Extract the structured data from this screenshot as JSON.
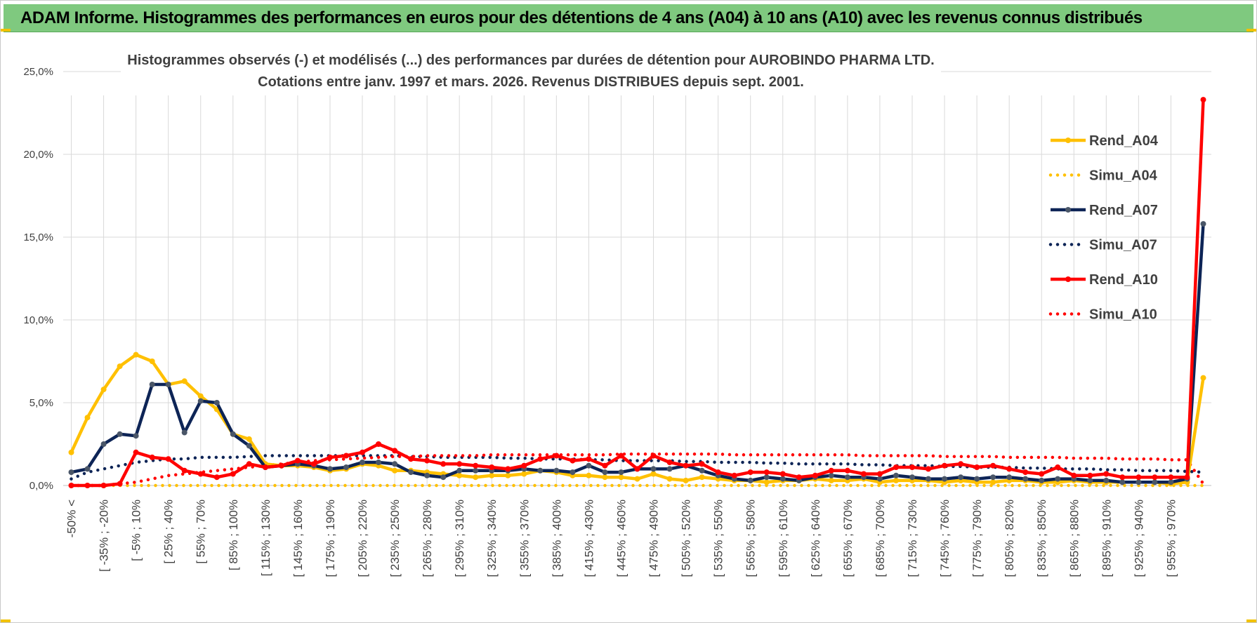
{
  "banner": {
    "title": "ADAM Informe. Histogrammes des performances en euros pour des détentions de 4 ans (A04) à 10 ans (A10) avec les revenus connus distribués"
  },
  "colors": {
    "banner": "#7fc97f",
    "corner": "#f2c200",
    "grid": "#d9d9d9",
    "A04": "#ffc000",
    "A07": "#0d2456",
    "A10": "#ff0000"
  },
  "chart_data": {
    "type": "line",
    "title": "Histogrammes observés (-) et modélisés (...) des performances par durées de détention pour AUROBINDO PHARMA LTD.",
    "subtitle": "Cotations entre janv. 1997 et mars. 2026. Revenus DISTRIBUES depuis sept. 2001.",
    "xlabel": "",
    "ylabel": "",
    "ylim": [
      0,
      25
    ],
    "yticks": [
      "0,0%",
      "5,0%",
      "10,0%",
      "15,0%",
      "20,0%",
      "25,0%"
    ],
    "grid": true,
    "legend_position": "right",
    "xtick_labels": [
      "-50% <",
      "[ -35% ; -20%",
      "[ -5% ; 10%",
      "[ 25% ; 40%",
      "[ 55% ; 70%",
      "[ 85% ; 100%",
      "[ 115% ; 130%",
      "[ 145% ; 160%",
      "[ 175% ; 190%",
      "[ 205% ; 220%",
      "[ 235% ; 250%",
      "[ 265% ; 280%",
      "[ 295% ; 310%",
      "[ 325% ; 340%",
      "[ 355% ; 370%",
      "[ 385% ; 400%",
      "[ 415% ; 430%",
      "[ 445% ; 460%",
      "[ 475% ; 490%",
      "[ 505% ; 520%",
      "[ 535% ; 550%",
      "[ 565% ; 580%",
      "[ 595% ; 610%",
      "[ 625% ; 640%",
      "[ 655% ; 670%",
      "[ 685% ; 700%",
      "[ 715% ; 730%",
      "[ 745% ; 760%",
      "[ 775% ; 790%",
      "[ 805% ; 820%",
      "[ 835% ; 850%",
      "[ 865% ; 880%",
      "[ 895% ; 910%",
      "[ 925% ; 940%",
      "[ 955% ; 970%"
    ],
    "series": [
      {
        "name": "Rend_A04",
        "style": "solid",
        "color": "#ffc000",
        "values": [
          2.0,
          4.1,
          5.8,
          7.2,
          7.9,
          7.5,
          6.1,
          6.3,
          5.4,
          4.6,
          3.1,
          2.8,
          1.3,
          1.2,
          1.2,
          1.1,
          0.9,
          1.0,
          1.3,
          1.2,
          0.9,
          0.9,
          0.8,
          0.7,
          0.6,
          0.5,
          0.6,
          0.6,
          0.7,
          0.9,
          0.8,
          0.6,
          0.6,
          0.5,
          0.5,
          0.4,
          0.7,
          0.4,
          0.3,
          0.5,
          0.4,
          0.3,
          0.3,
          0.2,
          0.3,
          0.3,
          0.4,
          0.3,
          0.3,
          0.4,
          0.2,
          0.3,
          0.3,
          0.3,
          0.2,
          0.3,
          0.2,
          0.2,
          0.3,
          0.3,
          0.2,
          0.2,
          0.3,
          0.2,
          0.2,
          0.2,
          0.2,
          0.2,
          0.1,
          0.2,
          6.5
        ]
      },
      {
        "name": "Simu_A04",
        "style": "dotted",
        "color": "#ffc000",
        "values": [
          0,
          0,
          0,
          0,
          0,
          0,
          0,
          0,
          0,
          0,
          0,
          0,
          0,
          0,
          0,
          0,
          0,
          0,
          0,
          0,
          0,
          0,
          0,
          0,
          0,
          0,
          0,
          0,
          0,
          0,
          0,
          0,
          0,
          0,
          0,
          0,
          0,
          0,
          0,
          0,
          0,
          0,
          0,
          0,
          0,
          0,
          0,
          0,
          0,
          0,
          0,
          0,
          0,
          0,
          0,
          0,
          0,
          0,
          0,
          0,
          0,
          0,
          0,
          0,
          0,
          0,
          0,
          0,
          0,
          0,
          0
        ]
      },
      {
        "name": "Rend_A07",
        "style": "solid",
        "color": "#0d2456",
        "values": [
          0.8,
          1.0,
          2.5,
          3.1,
          3.0,
          6.1,
          6.1,
          3.2,
          5.1,
          5.0,
          3.1,
          2.4,
          1.1,
          1.2,
          1.3,
          1.2,
          1.0,
          1.1,
          1.4,
          1.4,
          1.3,
          0.8,
          0.6,
          0.5,
          0.9,
          0.9,
          0.9,
          0.9,
          1.0,
          0.9,
          0.9,
          0.8,
          1.2,
          0.8,
          0.8,
          1.0,
          1.0,
          1.0,
          1.2,
          0.9,
          0.6,
          0.4,
          0.3,
          0.5,
          0.4,
          0.3,
          0.5,
          0.6,
          0.5,
          0.5,
          0.4,
          0.6,
          0.5,
          0.4,
          0.4,
          0.5,
          0.4,
          0.5,
          0.5,
          0.4,
          0.3,
          0.4,
          0.4,
          0.3,
          0.3,
          0.2,
          0.2,
          0.2,
          0.2,
          0.4,
          15.8
        ]
      },
      {
        "name": "Simu_A07",
        "style": "dotted",
        "color": "#0d2456",
        "values": [
          0.4,
          0.8,
          1.0,
          1.2,
          1.4,
          1.5,
          1.6,
          1.6,
          1.7,
          1.7,
          1.7,
          1.75,
          1.8,
          1.8,
          1.8,
          1.8,
          1.8,
          1.8,
          1.8,
          1.8,
          1.8,
          1.75,
          1.75,
          1.7,
          1.7,
          1.7,
          1.7,
          1.65,
          1.65,
          1.6,
          1.6,
          1.6,
          1.55,
          1.55,
          1.5,
          1.5,
          1.5,
          1.5,
          1.45,
          1.45,
          1.4,
          1.4,
          1.4,
          1.35,
          1.35,
          1.3,
          1.3,
          1.3,
          1.3,
          1.25,
          1.25,
          1.2,
          1.2,
          1.2,
          1.15,
          1.15,
          1.1,
          1.1,
          1.1,
          1.05,
          1.05,
          1.0,
          1.0,
          1.0,
          0.95,
          0.95,
          0.9,
          0.9,
          0.9,
          0.85,
          0.8
        ]
      },
      {
        "name": "Rend_A10",
        "style": "solid",
        "color": "#ff0000",
        "values": [
          0,
          0,
          0,
          0.1,
          2.0,
          1.7,
          1.6,
          0.9,
          0.7,
          0.5,
          0.7,
          1.3,
          1.1,
          1.2,
          1.5,
          1.3,
          1.7,
          1.8,
          2.0,
          2.5,
          2.1,
          1.6,
          1.5,
          1.3,
          1.3,
          1.2,
          1.1,
          1.0,
          1.2,
          1.6,
          1.8,
          1.5,
          1.6,
          1.2,
          1.8,
          1.0,
          1.8,
          1.4,
          1.2,
          1.3,
          0.8,
          0.6,
          0.8,
          0.8,
          0.7,
          0.5,
          0.6,
          0.9,
          0.9,
          0.7,
          0.7,
          1.1,
          1.1,
          1.0,
          1.2,
          1.3,
          1.1,
          1.2,
          1.0,
          0.8,
          0.7,
          1.1,
          0.6,
          0.6,
          0.7,
          0.5,
          0.5,
          0.5,
          0.5,
          0.5,
          23.3
        ]
      },
      {
        "name": "Simu_A10",
        "style": "dotted",
        "color": "#ff0000",
        "values": [
          0,
          0,
          0,
          0.1,
          0.2,
          0.4,
          0.6,
          0.7,
          0.8,
          0.9,
          1.0,
          1.1,
          1.2,
          1.3,
          1.4,
          1.5,
          1.55,
          1.6,
          1.65,
          1.7,
          1.75,
          1.75,
          1.8,
          1.8,
          1.8,
          1.8,
          1.85,
          1.85,
          1.85,
          1.85,
          1.85,
          1.85,
          1.85,
          1.85,
          1.9,
          1.9,
          1.9,
          1.9,
          1.9,
          1.9,
          1.9,
          1.85,
          1.85,
          1.85,
          1.85,
          1.85,
          1.85,
          1.85,
          1.85,
          1.8,
          1.8,
          1.8,
          1.8,
          1.8,
          1.75,
          1.75,
          1.75,
          1.75,
          1.7,
          1.7,
          1.7,
          1.7,
          1.65,
          1.65,
          1.65,
          1.6,
          1.6,
          1.6,
          1.55,
          1.55,
          0.1
        ]
      }
    ]
  }
}
